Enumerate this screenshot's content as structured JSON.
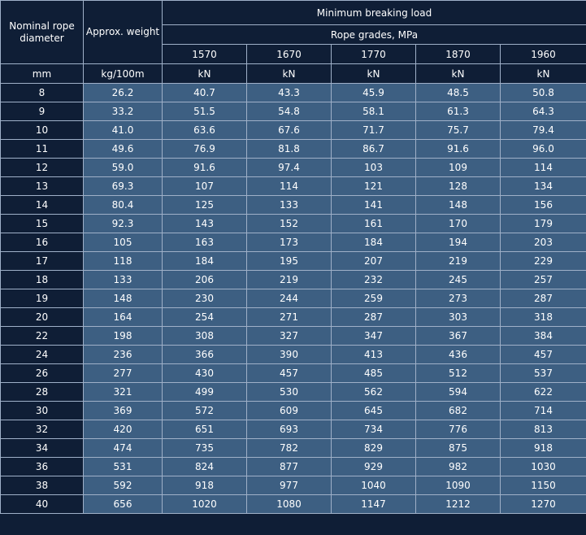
{
  "table": {
    "header": {
      "diameter_label": "Nominal rope diameter",
      "weight_label": "Approx. weight",
      "load_label": "Minimum breaking load",
      "grades_label": "Rope grades, MPa",
      "grades": [
        "1570",
        "1670",
        "1770",
        "1870",
        "1960"
      ]
    },
    "units": [
      "mm",
      "kg/100m",
      "kN",
      "kN",
      "kN",
      "kN",
      "kN"
    ],
    "rows": [
      [
        "8",
        "26.2",
        "40.7",
        "43.3",
        "45.9",
        "48.5",
        "50.8"
      ],
      [
        "9",
        "33.2",
        "51.5",
        "54.8",
        "58.1",
        "61.3",
        "64.3"
      ],
      [
        "10",
        "41.0",
        "63.6",
        "67.6",
        "71.7",
        "75.7",
        "79.4"
      ],
      [
        "11",
        "49.6",
        "76.9",
        "81.8",
        "86.7",
        "91.6",
        "96.0"
      ],
      [
        "12",
        "59.0",
        "91.6",
        "97.4",
        "103",
        "109",
        "114"
      ],
      [
        "13",
        "69.3",
        "107",
        "114",
        "121",
        "128",
        "134"
      ],
      [
        "14",
        "80.4",
        "125",
        "133",
        "141",
        "148",
        "156"
      ],
      [
        "15",
        "92.3",
        "143",
        "152",
        "161",
        "170",
        "179"
      ],
      [
        "16",
        "105",
        "163",
        "173",
        "184",
        "194",
        "203"
      ],
      [
        "17",
        "118",
        "184",
        "195",
        "207",
        "219",
        "229"
      ],
      [
        "18",
        "133",
        "206",
        "219",
        "232",
        "245",
        "257"
      ],
      [
        "19",
        "148",
        "230",
        "244",
        "259",
        "273",
        "287"
      ],
      [
        "20",
        "164",
        "254",
        "271",
        "287",
        "303",
        "318"
      ],
      [
        "22",
        "198",
        "308",
        "327",
        "347",
        "367",
        "384"
      ],
      [
        "24",
        "236",
        "366",
        "390",
        "413",
        "436",
        "457"
      ],
      [
        "26",
        "277",
        "430",
        "457",
        "485",
        "512",
        "537"
      ],
      [
        "28",
        "321",
        "499",
        "530",
        "562",
        "594",
        "622"
      ],
      [
        "30",
        "369",
        "572",
        "609",
        "645",
        "682",
        "714"
      ],
      [
        "32",
        "420",
        "651",
        "693",
        "734",
        "776",
        "813"
      ],
      [
        "34",
        "474",
        "735",
        "782",
        "829",
        "875",
        "918"
      ],
      [
        "36",
        "531",
        "824",
        "877",
        "929",
        "982",
        "1030"
      ],
      [
        "38",
        "592",
        "918",
        "977",
        "1040",
        "1090",
        "1150"
      ],
      [
        "40",
        "656",
        "1020",
        "1080",
        "1147",
        "1212",
        "1270"
      ]
    ]
  }
}
